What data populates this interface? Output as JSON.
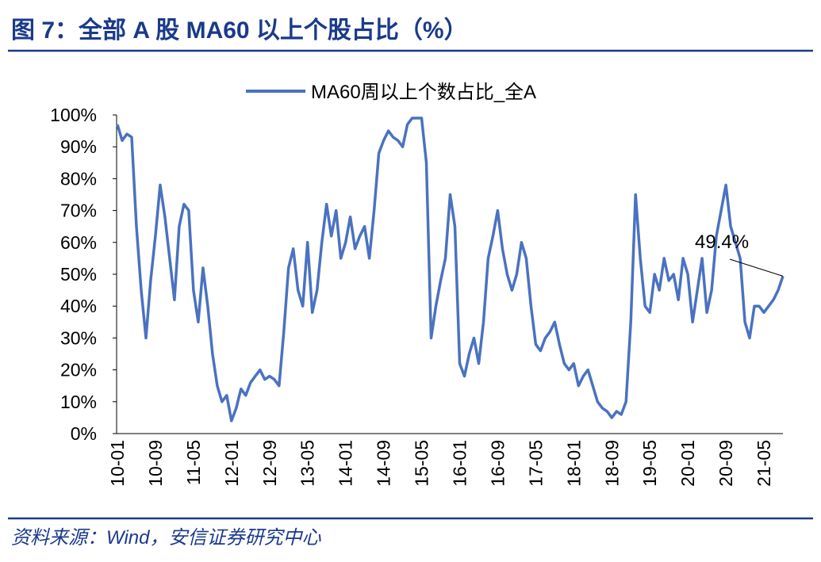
{
  "title": "图 7：全部 A 股 MA60 以上个股占比（%）",
  "source": "资料来源：Wind，安信证券研究中心",
  "chart_data": {
    "type": "line",
    "categories": [
      "10-01",
      null,
      null,
      null,
      null,
      null,
      null,
      null,
      "10-09",
      null,
      null,
      null,
      null,
      null,
      null,
      null,
      "11-05",
      null,
      null,
      null,
      null,
      null,
      null,
      null,
      "12-01",
      null,
      null,
      null,
      null,
      null,
      null,
      null,
      "12-09",
      null,
      null,
      null,
      null,
      null,
      null,
      null,
      "13-05",
      null,
      null,
      null,
      null,
      null,
      null,
      null,
      "14-01",
      null,
      null,
      null,
      null,
      null,
      null,
      null,
      "14-09",
      null,
      null,
      null,
      null,
      null,
      null,
      null,
      "15-05",
      null,
      null,
      null,
      null,
      null,
      null,
      null,
      "16-01",
      null,
      null,
      null,
      null,
      null,
      null,
      null,
      "16-09",
      null,
      null,
      null,
      null,
      null,
      null,
      null,
      "17-05",
      null,
      null,
      null,
      null,
      null,
      null,
      null,
      "18-01",
      null,
      null,
      null,
      null,
      null,
      null,
      null,
      "18-09",
      null,
      null,
      null,
      null,
      null,
      null,
      null,
      "19-05",
      null,
      null,
      null,
      null,
      null,
      null,
      null,
      "20-01",
      null,
      null,
      null,
      null,
      null,
      null,
      null,
      "20-09",
      null,
      null,
      null,
      null,
      null,
      null,
      null,
      "21-05",
      null,
      null,
      null,
      null
    ],
    "series": [
      {
        "name": "MA60周以上个数占比_全A",
        "color": "#4a72c0",
        "values": [
          97,
          92,
          94,
          93,
          65,
          45,
          30,
          48,
          62,
          78,
          68,
          55,
          42,
          65,
          72,
          70,
          45,
          35,
          52,
          40,
          25,
          15,
          10,
          12,
          4,
          8,
          14,
          12,
          16,
          18,
          20,
          17,
          18,
          17,
          15,
          32,
          52,
          58,
          45,
          40,
          60,
          38,
          45,
          60,
          72,
          62,
          70,
          55,
          60,
          68,
          58,
          62,
          65,
          55,
          70,
          88,
          92,
          95,
          93,
          92,
          90,
          97,
          99,
          99,
          99,
          85,
          30,
          40,
          48,
          55,
          75,
          65,
          22,
          18,
          25,
          30,
          22,
          35,
          55,
          62,
          70,
          58,
          50,
          45,
          50,
          60,
          55,
          40,
          28,
          26,
          30,
          32,
          35,
          28,
          22,
          20,
          22,
          15,
          18,
          20,
          15,
          10,
          8,
          7,
          5,
          7,
          6,
          10,
          35,
          75,
          55,
          40,
          38,
          50,
          45,
          55,
          48,
          50,
          42,
          55,
          50,
          35,
          45,
          55,
          38,
          45,
          62,
          70,
          78,
          65,
          60,
          55,
          35,
          30,
          40,
          40,
          38,
          40,
          42,
          45,
          49.4
        ]
      }
    ],
    "annotation": "49.4%",
    "ylim": [
      0,
      100
    ],
    "yticks": [
      {
        "value": 0,
        "label": "0%"
      },
      {
        "value": 10,
        "label": "10%"
      },
      {
        "value": 20,
        "label": "20%"
      },
      {
        "value": 30,
        "label": "30%"
      },
      {
        "value": 40,
        "label": "40%"
      },
      {
        "value": 50,
        "label": "50%"
      },
      {
        "value": 60,
        "label": "60%"
      },
      {
        "value": 70,
        "label": "70%"
      },
      {
        "value": 80,
        "label": "80%"
      },
      {
        "value": 90,
        "label": "90%"
      },
      {
        "value": 100,
        "label": "100%"
      }
    ],
    "grid": false,
    "legend": "top"
  }
}
